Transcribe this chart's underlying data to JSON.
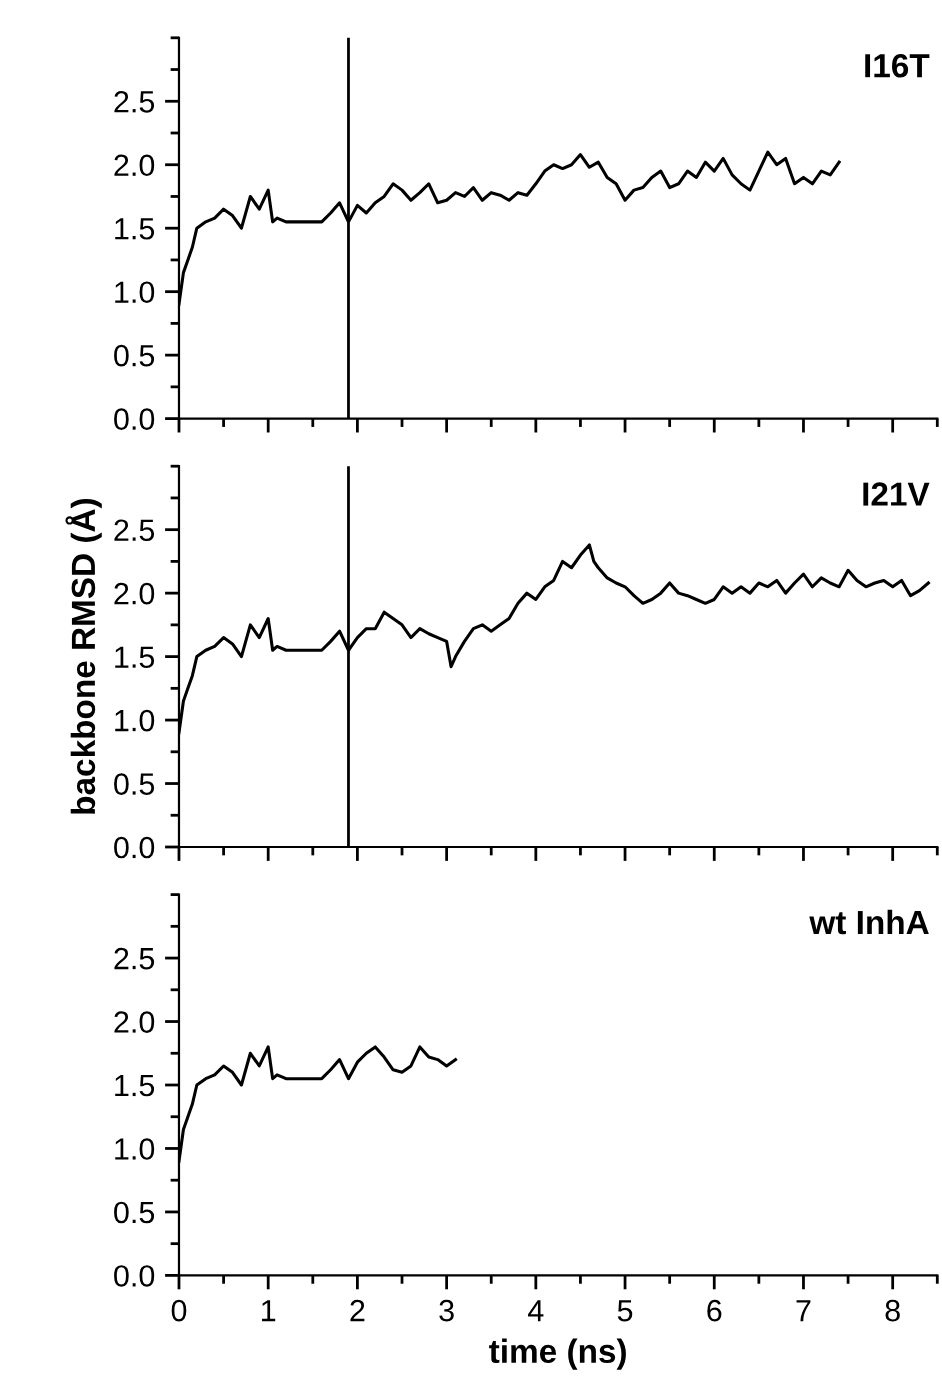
{
  "chart_data": [
    {
      "type": "line",
      "annotations": [
        "I16T"
      ],
      "tick_labels": "y",
      "x": [
        0,
        0.05,
        0.1,
        0.15,
        0.2,
        0.3,
        0.4,
        0.5,
        0.6,
        0.7,
        0.8,
        0.9,
        1.0,
        1.05,
        1.1,
        1.2,
        1.4,
        1.6,
        1.7,
        1.8,
        1.9,
        2.0,
        2.1,
        2.2,
        2.3,
        2.4,
        2.5,
        2.6,
        2.7,
        2.8,
        2.9,
        3.0,
        3.1,
        3.2,
        3.3,
        3.4,
        3.5,
        3.6,
        3.7,
        3.8,
        3.9,
        4.0,
        4.1,
        4.2,
        4.3,
        4.4,
        4.5,
        4.6,
        4.7,
        4.8,
        4.9,
        5.0,
        5.1,
        5.2,
        5.3,
        5.4,
        5.5,
        5.6,
        5.7,
        5.8,
        5.9,
        6.0,
        6.1,
        6.2,
        6.3,
        6.4,
        6.5,
        6.6,
        6.7,
        6.8,
        6.9,
        7.0,
        7.1,
        7.2,
        7.3,
        7.4
      ],
      "series": [
        {
          "color": "#000000",
          "values": [
            0.9,
            1.15,
            1.25,
            1.35,
            1.5,
            1.55,
            1.58,
            1.65,
            1.6,
            1.5,
            1.75,
            1.65,
            1.8,
            1.55,
            1.58,
            1.55,
            1.55,
            1.55,
            1.62,
            1.7,
            1.55,
            1.68,
            1.62,
            1.7,
            1.75,
            1.85,
            1.8,
            1.72,
            1.78,
            1.85,
            1.7,
            1.72,
            1.78,
            1.75,
            1.82,
            1.72,
            1.78,
            1.76,
            1.72,
            1.78,
            1.76,
            1.85,
            1.95,
            2.0,
            1.97,
            2.0,
            2.08,
            1.98,
            2.02,
            1.9,
            1.85,
            1.72,
            1.8,
            1.82,
            1.9,
            1.95,
            1.82,
            1.85,
            1.95,
            1.9,
            2.02,
            1.95,
            2.05,
            1.92,
            1.85,
            1.8,
            1.95,
            2.1,
            2.0,
            2.05,
            1.85,
            1.9,
            1.85,
            1.95,
            1.92,
            2.02
          ]
        }
      ],
      "xlim": [
        0,
        8.5
      ],
      "ylim": [
        0,
        3.0
      ],
      "xticks": [
        0,
        1,
        2,
        3,
        4,
        5,
        6,
        7,
        8
      ],
      "yticks": [
        {
          "value": 0,
          "label": "0.0"
        },
        {
          "value": 0.5,
          "label": "0.5"
        },
        {
          "value": 1,
          "label": "1.0"
        },
        {
          "value": 1.5,
          "label": "1.5"
        },
        {
          "value": 2,
          "label": "2.0"
        },
        {
          "value": 2.5,
          "label": "2.5"
        }
      ],
      "ref_lines": [
        {
          "axis": "x",
          "value": 1.9,
          "color": "#000000"
        }
      ],
      "grid": false,
      "legend": false
    },
    {
      "type": "line",
      "annotations": [
        "I21V"
      ],
      "tick_labels": "y",
      "ylabel": "backbone RMSD (Å)",
      "x": [
        0,
        0.05,
        0.1,
        0.15,
        0.2,
        0.3,
        0.4,
        0.5,
        0.6,
        0.7,
        0.8,
        0.9,
        1.0,
        1.05,
        1.1,
        1.2,
        1.4,
        1.6,
        1.7,
        1.8,
        1.9,
        2.0,
        2.1,
        2.2,
        2.3,
        2.4,
        2.5,
        2.6,
        2.7,
        2.8,
        2.9,
        3.0,
        3.05,
        3.1,
        3.2,
        3.3,
        3.4,
        3.5,
        3.6,
        3.7,
        3.8,
        3.9,
        4.0,
        4.1,
        4.2,
        4.3,
        4.4,
        4.5,
        4.6,
        4.65,
        4.7,
        4.8,
        4.9,
        5.0,
        5.1,
        5.2,
        5.3,
        5.4,
        5.5,
        5.6,
        5.7,
        5.8,
        5.9,
        6.0,
        6.1,
        6.2,
        6.3,
        6.4,
        6.5,
        6.6,
        6.7,
        6.8,
        6.9,
        7.0,
        7.1,
        7.2,
        7.3,
        7.4,
        7.5,
        7.6,
        7.7,
        7.8,
        7.9,
        8.0,
        8.1,
        8.2,
        8.3,
        8.4
      ],
      "series": [
        {
          "color": "#000000",
          "values": [
            0.9,
            1.15,
            1.25,
            1.35,
            1.5,
            1.55,
            1.58,
            1.65,
            1.6,
            1.5,
            1.75,
            1.65,
            1.8,
            1.55,
            1.58,
            1.55,
            1.55,
            1.55,
            1.62,
            1.7,
            1.55,
            1.65,
            1.72,
            1.72,
            1.85,
            1.8,
            1.75,
            1.65,
            1.72,
            1.68,
            1.65,
            1.62,
            1.42,
            1.5,
            1.62,
            1.72,
            1.75,
            1.7,
            1.75,
            1.8,
            1.92,
            2.0,
            1.95,
            2.05,
            2.1,
            2.25,
            2.2,
            2.3,
            2.38,
            2.25,
            2.2,
            2.12,
            2.08,
            2.05,
            1.98,
            1.92,
            1.95,
            2.0,
            2.08,
            2.0,
            1.98,
            1.95,
            1.92,
            1.95,
            2.05,
            2.0,
            2.05,
            2.0,
            2.08,
            2.05,
            2.1,
            2.0,
            2.08,
            2.15,
            2.05,
            2.12,
            2.08,
            2.05,
            2.18,
            2.1,
            2.05,
            2.08,
            2.1,
            2.05,
            2.1,
            1.98,
            2.02,
            2.08
          ]
        }
      ],
      "xlim": [
        0,
        8.5
      ],
      "ylim": [
        0,
        3.0
      ],
      "xticks": [
        0,
        1,
        2,
        3,
        4,
        5,
        6,
        7,
        8
      ],
      "yticks": [
        {
          "value": 0,
          "label": "0.0"
        },
        {
          "value": 0.5,
          "label": "0.5"
        },
        {
          "value": 1,
          "label": "1.0"
        },
        {
          "value": 1.5,
          "label": "1.5"
        },
        {
          "value": 2,
          "label": "2.0"
        },
        {
          "value": 2.5,
          "label": "2.5"
        }
      ],
      "ref_lines": [
        {
          "axis": "x",
          "value": 1.9,
          "color": "#000000"
        }
      ],
      "grid": false,
      "legend": false
    },
    {
      "type": "line",
      "annotations": [
        "wt InhA"
      ],
      "xlabel": "time (ns)",
      "x": [
        0,
        0.05,
        0.1,
        0.15,
        0.2,
        0.3,
        0.4,
        0.5,
        0.6,
        0.7,
        0.8,
        0.9,
        1.0,
        1.05,
        1.1,
        1.2,
        1.4,
        1.6,
        1.7,
        1.8,
        1.9,
        2.0,
        2.1,
        2.2,
        2.3,
        2.4,
        2.5,
        2.6,
        2.7,
        2.8,
        2.9,
        3.0,
        3.1
      ],
      "series": [
        {
          "color": "#000000",
          "values": [
            0.9,
            1.15,
            1.25,
            1.35,
            1.5,
            1.55,
            1.58,
            1.65,
            1.6,
            1.5,
            1.75,
            1.65,
            1.8,
            1.55,
            1.58,
            1.55,
            1.55,
            1.55,
            1.62,
            1.7,
            1.55,
            1.68,
            1.75,
            1.8,
            1.72,
            1.62,
            1.6,
            1.65,
            1.8,
            1.72,
            1.7,
            1.65,
            1.7
          ]
        }
      ],
      "xlim": [
        0,
        8.5
      ],
      "ylim": [
        0,
        3.0
      ],
      "xticks": [
        0,
        1,
        2,
        3,
        4,
        5,
        6,
        7,
        8
      ],
      "yticks": [
        {
          "value": 0,
          "label": "0.0"
        },
        {
          "value": 0.5,
          "label": "0.5"
        },
        {
          "value": 1,
          "label": "1.0"
        },
        {
          "value": 1.5,
          "label": "1.5"
        },
        {
          "value": 2,
          "label": "2.0"
        },
        {
          "value": 2.5,
          "label": "2.5"
        }
      ],
      "grid": false,
      "legend": false
    }
  ]
}
